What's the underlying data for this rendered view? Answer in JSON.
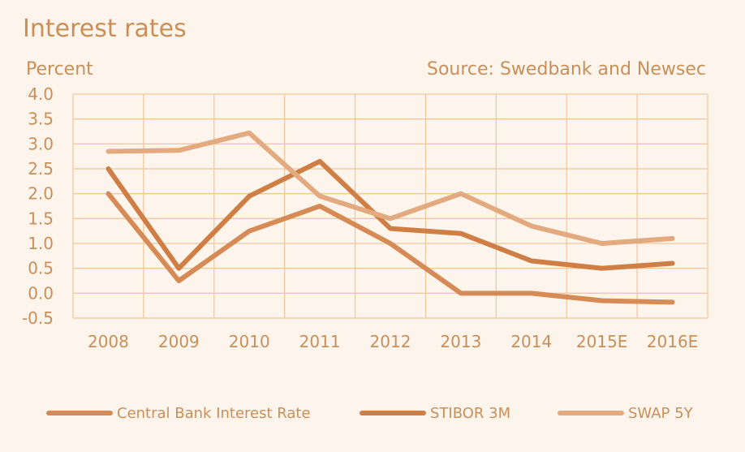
{
  "chart_data": {
    "type": "line",
    "title": "Interest rates",
    "ylabel": "Percent",
    "source": "Source: Swedbank and Newsec",
    "categories": [
      "2008",
      "2009",
      "2010",
      "2011",
      "2012",
      "2013",
      "2014",
      "2015E",
      "2016E"
    ],
    "ylim": [
      -0.5,
      4.0
    ],
    "yticks": [
      "4.0",
      "3.5",
      "3.0",
      "2.5",
      "2.0",
      "1.5",
      "1.0",
      "0.5",
      "0.0",
      "-0.5"
    ],
    "ytick_values": [
      4.0,
      3.5,
      3.0,
      2.5,
      2.0,
      1.5,
      1.0,
      0.5,
      0.0,
      -0.5
    ],
    "grid": true,
    "legend_position": "bottom",
    "series": [
      {
        "name": "Central Bank Interest Rate",
        "color": "#d68a55",
        "values": [
          2.0,
          0.25,
          1.25,
          1.75,
          1.0,
          0.0,
          0.0,
          -0.15,
          -0.18
        ]
      },
      {
        "name": "STIBOR 3M",
        "color": "#cf7f45",
        "values": [
          2.5,
          0.5,
          1.95,
          2.65,
          1.3,
          1.2,
          0.65,
          0.5,
          0.6
        ]
      },
      {
        "name": "SWAP 5Y",
        "color": "#e3aa80",
        "values": [
          2.85,
          2.87,
          3.22,
          1.95,
          1.5,
          2.0,
          1.35,
          1.0,
          1.1
        ]
      }
    ]
  }
}
